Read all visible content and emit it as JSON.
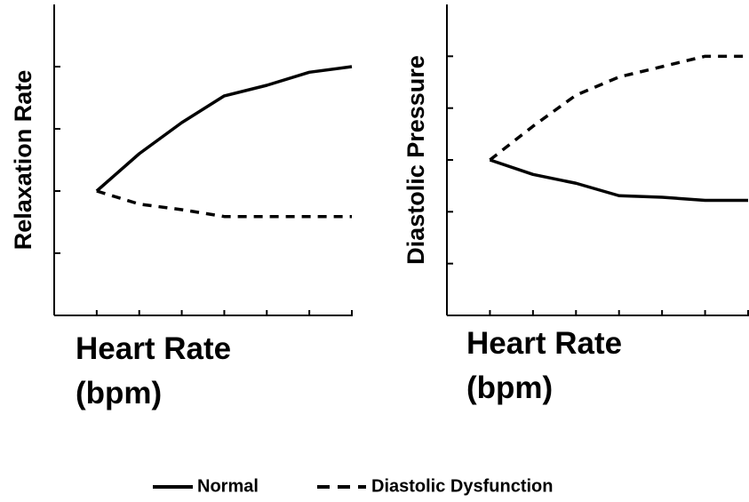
{
  "chart_data": [
    {
      "type": "line",
      "y_label": "Relaxation Rate",
      "x_label": "Heart Rate (bpm)",
      "x": [
        0,
        1,
        2,
        3,
        4,
        5,
        6
      ],
      "xlim": [
        -1,
        6
      ],
      "xticks": [
        0,
        1,
        2,
        3,
        4,
        5,
        6
      ],
      "ylim": [
        0,
        5
      ],
      "yticks": [
        1,
        2,
        3,
        4
      ],
      "series": [
        {
          "name": "Normal",
          "color": "#000000",
          "dash": false,
          "values": [
            2.0,
            2.6,
            3.1,
            3.53,
            3.7,
            3.91,
            4.0
          ]
        },
        {
          "name": "Diastolic Dysfunction",
          "color": "#000000",
          "dash": true,
          "values": [
            2.0,
            1.79,
            1.7,
            1.59,
            1.59,
            1.59,
            1.59
          ]
        }
      ]
    },
    {
      "type": "line",
      "y_label": "Diastolic Pressure",
      "x_label": "Heart Rate (bpm)",
      "x": [
        0,
        1,
        2,
        3,
        4,
        5,
        6
      ],
      "xlim": [
        -1,
        6
      ],
      "xticks": [
        0,
        1,
        2,
        3,
        4,
        5,
        6
      ],
      "ylim": [
        0,
        6
      ],
      "yticks": [
        1,
        2,
        3,
        4,
        5
      ],
      "series": [
        {
          "color": "#000000",
          "dash": false,
          "values": [
            3.0,
            2.72,
            2.55,
            2.31,
            2.28,
            2.22,
            2.22
          ]
        },
        {
          "color": "#000000",
          "dash": true,
          "values": [
            3.0,
            3.65,
            4.25,
            4.6,
            4.8,
            5.0,
            5.0
          ]
        }
      ]
    }
  ]
}
